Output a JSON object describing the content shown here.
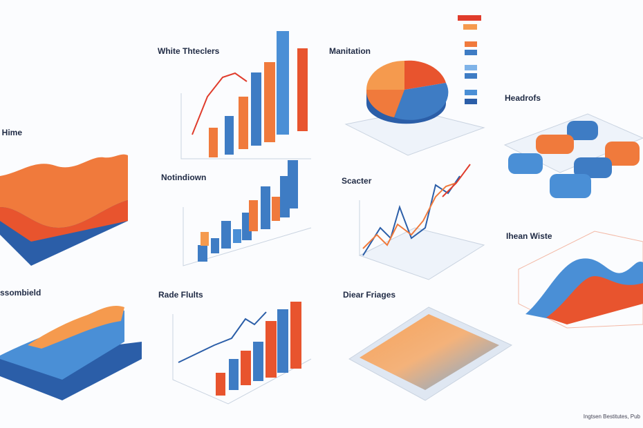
{
  "panels": [
    {
      "title": "White Thteclers"
    },
    {
      "title": "Manitation"
    },
    {
      "title": "Headrofs"
    },
    {
      "title": ", Hime"
    },
    {
      "title": "Notindiown"
    },
    {
      "title": "Scacter"
    },
    {
      "title": "ssombield"
    },
    {
      "title": "Ihean Wiste"
    },
    {
      "title": "Rade Flults"
    },
    {
      "title": "Diear Friages"
    }
  ],
  "footer": "Ingtsen Bestitutes, Pub"
}
